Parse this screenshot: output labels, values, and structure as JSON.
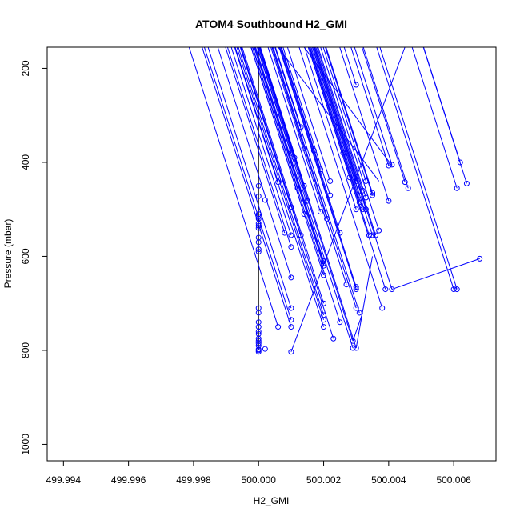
{
  "chart_data": {
    "type": "scatter",
    "title": "ATOM4 Southbound H2_GMI",
    "xlabel": "H2_GMI",
    "ylabel": "Pressure (mbar)",
    "xlim": [
      499.9935,
      500.0073
    ],
    "ylim": [
      1035,
      155
    ],
    "y_reversed": true,
    "grid": false,
    "x_ticks": [
      499.994,
      499.996,
      499.998,
      500.0,
      500.002,
      500.004,
      500.006
    ],
    "x_tick_labels": [
      "499.994",
      "499.996",
      "499.998",
      "500.000",
      "500.002",
      "500.004",
      "500.006"
    ],
    "y_ticks": [
      200,
      400,
      600,
      800,
      1000
    ],
    "y_tick_labels": [
      "200",
      "400",
      "600",
      "800",
      "1000"
    ],
    "series_color": "#0000ff",
    "vertical_line_color": "#000000",
    "vertical_line_x": 500.0,
    "series": [
      {
        "x": [
          500.0,
          500.0,
          500.0,
          500.0,
          500.0,
          500.0,
          500.0,
          500.0,
          500.0,
          500.0,
          500.0,
          500.0,
          500.0,
          500.0,
          500.0,
          500.0,
          500.0,
          500.0,
          500.0,
          500.0,
          500.0,
          500.0,
          500.0,
          500.0,
          500.0,
          500.0002,
          500.0002,
          500.0006,
          500.0006,
          500.0008,
          500.001,
          500.001,
          500.001,
          500.001,
          500.001,
          500.001,
          500.001,
          500.001,
          500.001,
          500.0011,
          500.0012,
          500.0013,
          500.0013,
          500.0014,
          500.0014,
          500.0014,
          500.0015,
          500.0017,
          500.0019,
          500.0019,
          500.002,
          500.002,
          500.002,
          500.002,
          500.002,
          500.002,
          500.002,
          500.002,
          500.0021,
          500.0022,
          500.0022,
          500.0023,
          500.0025,
          500.0025,
          500.0026,
          500.0027,
          500.0028,
          500.0029,
          500.0029,
          500.003,
          500.003,
          500.003,
          500.003,
          500.003,
          500.003,
          500.003,
          500.0031,
          500.0031,
          500.0031,
          500.0032,
          500.0032,
          500.0033,
          500.0033,
          500.0033,
          500.0034,
          500.0035,
          500.0035,
          500.0035,
          500.0036,
          500.0037,
          500.0038,
          500.0039,
          500.004,
          500.004,
          500.0041,
          500.0041,
          500.0045,
          500.0046,
          500.006,
          500.0061,
          500.0061,
          500.0062,
          500.0064,
          500.0068
        ],
        "y": [
          450,
          472,
          510,
          515,
          520,
          530,
          535,
          540,
          560,
          570,
          585,
          590,
          710,
          750,
          760,
          775,
          790,
          800,
          803,
          720,
          740,
          765,
          780,
          785,
          798,
          480,
          797,
          442,
          750,
          550,
          380,
          495,
          555,
          580,
          645,
          710,
          735,
          750,
          803,
          390,
          455,
          555,
          325,
          510,
          370,
          450,
          482,
          375,
          415,
          505,
          610,
          615,
          620,
          640,
          700,
          725,
          735,
          750,
          520,
          440,
          470,
          775,
          550,
          740,
          380,
          660,
          432,
          780,
          795,
          235,
          440,
          500,
          665,
          670,
          710,
          795,
          485,
          470,
          720,
          460,
          500,
          440,
          475,
          500,
          555,
          465,
          470,
          555,
          555,
          545,
          710,
          670,
          407,
          482,
          670,
          405,
          442,
          455,
          670,
          455,
          670,
          400,
          445,
          605
        ]
      }
    ],
    "ascending_segments": [
      [
        [
          500.001,
          803
        ],
        [
          500.0045,
          155
        ]
      ],
      [
        [
          500.0041,
          670
        ],
        [
          500.0068,
          605
        ]
      ],
      [
        [
          500.003,
          795
        ],
        [
          500.0035,
          600
        ]
      ],
      [
        [
          500.0029,
          780
        ],
        [
          500.0032,
          720
        ]
      ],
      [
        [
          500.0041,
          407
        ],
        [
          500.0014,
          155
        ]
      ],
      [
        [
          500.0037,
          440
        ],
        [
          500.0006,
          155
        ]
      ]
    ]
  }
}
